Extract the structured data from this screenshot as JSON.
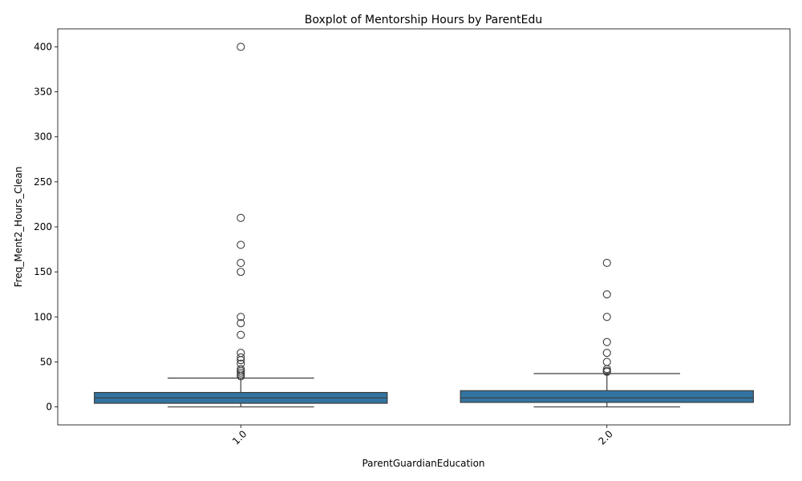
{
  "chart_data": {
    "type": "boxplot",
    "title": "Boxplot of Mentorship Hours by ParentEdu",
    "xlabel": "ParentGuardianEducation",
    "ylabel": "Freq_Ment2_Hours_Clean",
    "ylim": [
      -20,
      420
    ],
    "yticks": [
      0,
      50,
      100,
      150,
      200,
      250,
      300,
      350,
      400
    ],
    "categories": [
      "1.0",
      "2.0"
    ],
    "box_color": "#3274a1",
    "line_color": "#3d3d3d",
    "boxes": [
      {
        "category": "1.0",
        "whisker_low": 0,
        "q1": 4,
        "median": 10,
        "q3": 16,
        "whisker_high": 32,
        "outliers": [
          400,
          210,
          180,
          160,
          150,
          100,
          93,
          80,
          60,
          55,
          52,
          48,
          42,
          40,
          38,
          36,
          34
        ]
      },
      {
        "category": "2.0",
        "whisker_low": 0,
        "q1": 5,
        "median": 10,
        "q3": 18,
        "whisker_high": 37,
        "outliers": [
          160,
          125,
          100,
          72,
          60,
          50,
          42,
          40,
          39
        ]
      }
    ]
  }
}
